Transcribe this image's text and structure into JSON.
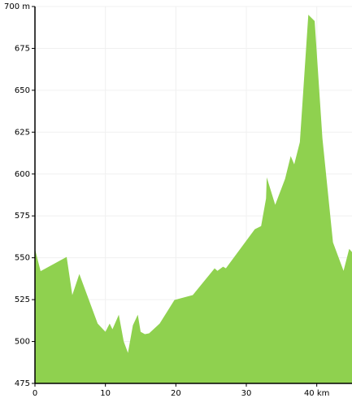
{
  "chart_data": {
    "type": "area",
    "x": [
      0,
      0.8,
      4.5,
      5.3,
      6.3,
      8.9,
      10.0,
      10.6,
      11.0,
      11.9,
      12.6,
      13.2,
      13.9,
      14.6,
      15.0,
      15.6,
      16.2,
      17.7,
      19.8,
      22.4,
      25.5,
      25.9,
      26.7,
      27.1,
      31.2,
      32.1,
      32.8,
      32.9,
      34.1,
      35.5,
      36.3,
      36.8,
      37.6,
      38.8,
      39.7,
      40.8,
      42.3,
      43.8,
      44.6,
      45
    ],
    "values": [
      555.3,
      542,
      550.5,
      527.7,
      540.3,
      510.7,
      505.8,
      510.7,
      507.3,
      516,
      500,
      493.2,
      509.7,
      516,
      505.8,
      504.4,
      504.9,
      510.7,
      524.8,
      527.7,
      543.7,
      542.2,
      544.7,
      543.7,
      567,
      568.9,
      585.4,
      598,
      581.6,
      597.1,
      610.7,
      605.8,
      619,
      695.1,
      691.3,
      621.4,
      559.2,
      542.2,
      555.3,
      553.4
    ],
    "color": "#8fd14f",
    "xlim": [
      0,
      45
    ],
    "xticks": [
      0,
      10,
      20,
      30,
      {
        "value": 40,
        "label": "40 km"
      }
    ],
    "ylim": [
      475,
      700
    ],
    "yticks": [
      475,
      500,
      525,
      550,
      575,
      600,
      625,
      650,
      675,
      {
        "value": 700,
        "label": "700 m"
      }
    ],
    "grid": true
  }
}
